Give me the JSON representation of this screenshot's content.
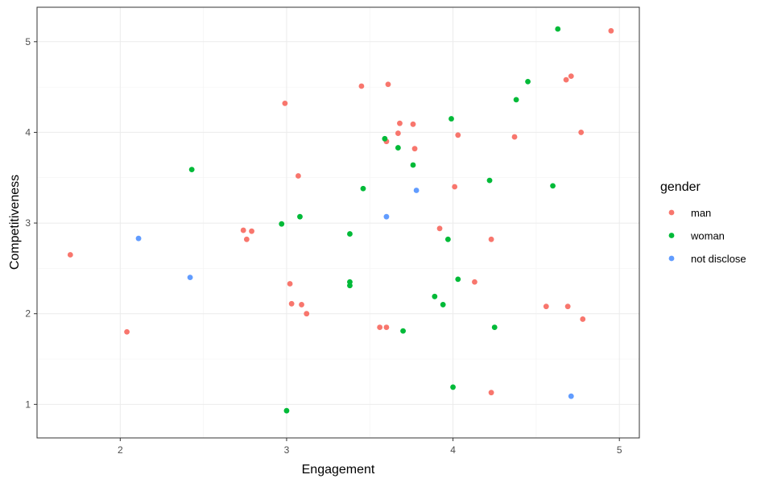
{
  "chart_data": {
    "type": "scatter",
    "xlabel": "Engagement",
    "ylabel": "Competitiveness",
    "xlim": [
      1.5,
      5.12
    ],
    "ylim": [
      0.63,
      5.38
    ],
    "xticks": [
      2,
      3,
      4,
      5
    ],
    "yticks": [
      1,
      2,
      3,
      4,
      5
    ],
    "grid": true,
    "legend": {
      "title": "gender",
      "position": "right"
    },
    "series": [
      {
        "name": "man",
        "color": "#F8766D",
        "points": [
          [
            1.7,
            2.65
          ],
          [
            2.04,
            1.8
          ],
          [
            2.74,
            2.92
          ],
          [
            2.76,
            2.82
          ],
          [
            2.79,
            2.91
          ],
          [
            2.99,
            4.32
          ],
          [
            3.02,
            2.33
          ],
          [
            3.03,
            2.11
          ],
          [
            3.07,
            3.52
          ],
          [
            3.09,
            2.1
          ],
          [
            3.12,
            2.0
          ],
          [
            3.45,
            4.51
          ],
          [
            3.56,
            1.85
          ],
          [
            3.6,
            1.85
          ],
          [
            3.61,
            4.53
          ],
          [
            3.6,
            3.9
          ],
          [
            3.67,
            3.99
          ],
          [
            3.68,
            4.1
          ],
          [
            3.76,
            4.09
          ],
          [
            3.77,
            3.82
          ],
          [
            3.92,
            2.94
          ],
          [
            4.01,
            3.4
          ],
          [
            4.03,
            3.97
          ],
          [
            4.13,
            2.35
          ],
          [
            4.23,
            2.82
          ],
          [
            4.23,
            1.13
          ],
          [
            4.37,
            3.95
          ],
          [
            4.56,
            2.08
          ],
          [
            4.68,
            4.58
          ],
          [
            4.69,
            2.08
          ],
          [
            4.71,
            4.62
          ],
          [
            4.77,
            4.0
          ],
          [
            4.78,
            1.94
          ],
          [
            4.95,
            5.12
          ]
        ]
      },
      {
        "name": "woman",
        "color": "#00BA38",
        "points": [
          [
            2.43,
            3.59
          ],
          [
            2.97,
            2.99
          ],
          [
            3.0,
            0.93
          ],
          [
            3.08,
            3.07
          ],
          [
            3.38,
            2.88
          ],
          [
            3.38,
            2.35
          ],
          [
            3.38,
            2.31
          ],
          [
            3.46,
            3.38
          ],
          [
            3.59,
            3.93
          ],
          [
            3.67,
            3.83
          ],
          [
            3.7,
            1.81
          ],
          [
            3.76,
            3.64
          ],
          [
            3.89,
            2.19
          ],
          [
            3.94,
            2.1
          ],
          [
            3.97,
            2.82
          ],
          [
            3.99,
            4.15
          ],
          [
            4.0,
            1.19
          ],
          [
            4.03,
            2.38
          ],
          [
            4.22,
            3.47
          ],
          [
            4.25,
            1.85
          ],
          [
            4.38,
            4.36
          ],
          [
            4.45,
            4.56
          ],
          [
            4.6,
            3.41
          ],
          [
            4.63,
            5.14
          ]
        ]
      },
      {
        "name": "not disclose",
        "color": "#619CFF",
        "points": [
          [
            2.11,
            2.83
          ],
          [
            2.42,
            2.4
          ],
          [
            3.6,
            3.07
          ],
          [
            3.78,
            3.36
          ],
          [
            4.71,
            1.09
          ]
        ]
      }
    ]
  }
}
